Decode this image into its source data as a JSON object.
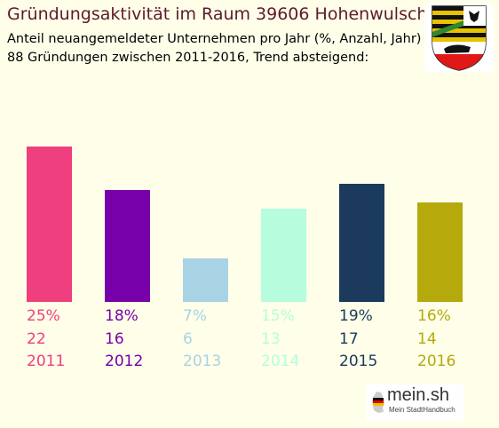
{
  "header": {
    "title": "Gründungsaktivität im Raum 39606 Hohenwulsch",
    "subtitle1": "Anteil neuangemeldeter Unternehmen pro Jahr (%, Anzahl, Jahr)",
    "subtitle2": "88 Gründungen zwischen 2011-2016, Trend absteigend:"
  },
  "brand": {
    "name": "mein.sh",
    "tagline": "Mein StadtHandbuch"
  },
  "colors": {
    "background": "#fefee9",
    "title": "#5e1a2e"
  },
  "chart_data": {
    "type": "bar",
    "categories": [
      "2011",
      "2012",
      "2013",
      "2014",
      "2015",
      "2016"
    ],
    "values": [
      25,
      18,
      7,
      15,
      19,
      16
    ],
    "counts": [
      22,
      16,
      6,
      13,
      17,
      14
    ],
    "percent_labels": [
      "25%",
      "18%",
      "7%",
      "15%",
      "19%",
      "16%"
    ],
    "colors": [
      "#ef3f7e",
      "#7700aa",
      "#a8d3e4",
      "#b5fddc",
      "#1b3a5c",
      "#b5a90c"
    ],
    "ylim": [
      0,
      25
    ]
  }
}
